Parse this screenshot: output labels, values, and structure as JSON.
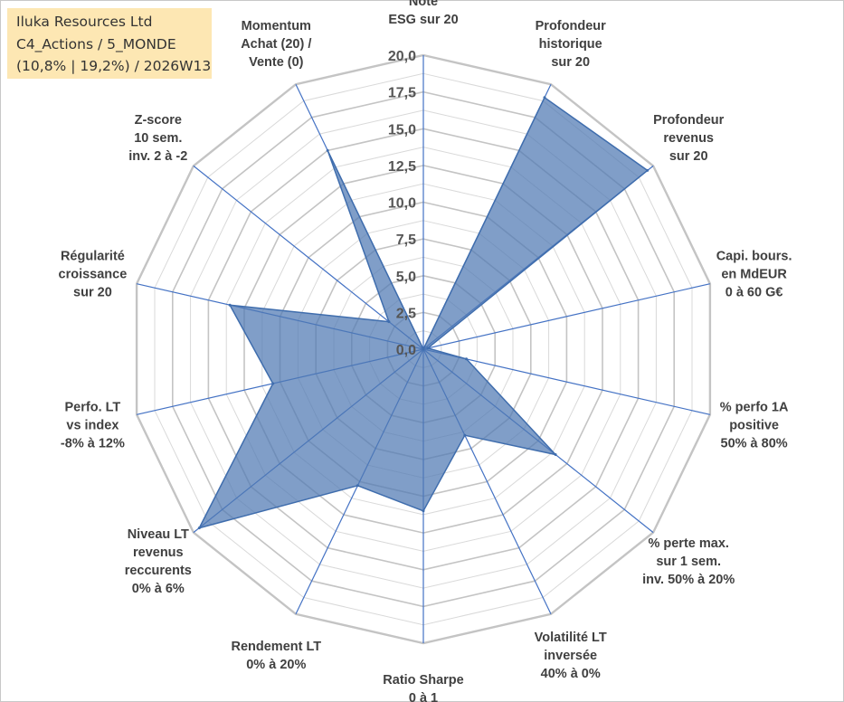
{
  "info": {
    "company": "Iluka Resources Ltd",
    "category": "C4_Actions / 5_MONDE",
    "stats": "(10,8% | 19,2%) / 2026W13"
  },
  "chart_data": {
    "type": "radar",
    "title": "",
    "rmin": 0,
    "rmax": 20,
    "ticks": [
      0,
      2.5,
      5,
      7.5,
      10,
      12.5,
      15,
      17.5,
      20
    ],
    "tick_labels": [
      "0,0",
      "2,5",
      "5,0",
      "7,5",
      "10,0",
      "12,5",
      "15,0",
      "17,5",
      "20,0"
    ],
    "axes": [
      {
        "label": [
          "Note",
          "ESG sur 20"
        ],
        "value": 0
      },
      {
        "label": [
          "Profondeur",
          "historique",
          "sur 20"
        ],
        "value": 19
      },
      {
        "label": [
          "Profondeur",
          "revenus",
          "sur 20"
        ],
        "value": 19.5
      },
      {
        "label": [
          "Capi. bours.",
          "en MdEUR",
          "0 à 60 G€"
        ],
        "value": 0.3
      },
      {
        "label": [
          "% perfo 1A",
          "positive",
          "50% à 80%"
        ],
        "value": 3
      },
      {
        "label": [
          "% perte max.",
          "sur 1 sem.",
          "inv. 50% à 20%"
        ],
        "value": 11.5
      },
      {
        "label": [
          "Volatilité LT",
          "inversée",
          "40% à 0%"
        ],
        "value": 6.5
      },
      {
        "label": [
          "Ratio Sharpe",
          "0 à 1"
        ],
        "value": 11
      },
      {
        "label": [
          "Rendement LT",
          "0% à 20%"
        ],
        "value": 10.3
      },
      {
        "label": [
          "Niveau LT",
          "revenus",
          "reccurents",
          "0% à 6%"
        ],
        "value": 19.5
      },
      {
        "label": [
          "Perfo. LT",
          "vs index",
          "-8% à 12%"
        ],
        "value": 10.5
      },
      {
        "label": [
          "Régularité",
          "croissance",
          "sur 20"
        ],
        "value": 13.5
      },
      {
        "label": [
          "Z-score",
          "10 sem.",
          "inv. 2 à -2"
        ],
        "value": 3
      },
      {
        "label": [
          "Momentum",
          "Achat (20) /",
          "Vente (0)"
        ],
        "value": 15
      }
    ],
    "colors": {
      "fill": "#4f79b3",
      "stroke": "#3f6dad",
      "spoke": "#4472c4",
      "grid_major": "#c4c4c4",
      "grid_minor": "#d9d9d9"
    }
  }
}
